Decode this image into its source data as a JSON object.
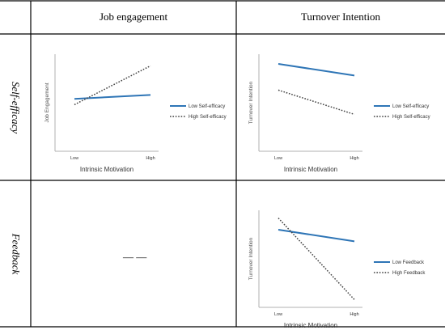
{
  "table": {
    "col_headers": [
      "Job engagement",
      "Turnover Intention"
    ],
    "row_headers": [
      "Self-efficacy",
      "Feedback"
    ],
    "empty_cell_text": "— —"
  },
  "colors": {
    "low_series": "#2e75b6",
    "high_series": "#404040",
    "grid_line": "#000000",
    "axis": "#b0b0b0"
  },
  "chart_data": [
    {
      "id": "selfefficacy_jobengagement",
      "type": "line",
      "x": [
        "Low",
        "High"
      ],
      "xlabel": "Intrinsic Motivation",
      "ylabel": "Job Engagement",
      "ylim": [
        0,
        10
      ],
      "legend_position": "right",
      "series": [
        {
          "name": "Low Self-efficacy",
          "values": [
            5.4,
            5.8
          ],
          "style": "solid"
        },
        {
          "name": "High Self-efficacy",
          "values": [
            4.8,
            8.8
          ],
          "style": "dotted"
        }
      ]
    },
    {
      "id": "selfefficacy_turnover",
      "type": "line",
      "x": [
        "Low",
        "High"
      ],
      "xlabel": "Intrinsic Motivation",
      "ylabel": "Turnover Intention",
      "ylim": [
        0,
        10
      ],
      "legend_position": "right",
      "series": [
        {
          "name": "Low Self-efficacy",
          "values": [
            9.0,
            7.8
          ],
          "style": "solid"
        },
        {
          "name": "High Self-efficacy",
          "values": [
            6.3,
            3.8
          ],
          "style": "dotted"
        }
      ]
    },
    {
      "id": "feedback_turnover",
      "type": "line",
      "x": [
        "Low",
        "High"
      ],
      "xlabel": "Intrinsic Motivation",
      "ylabel": "Turnover Intention",
      "ylim": [
        0,
        10
      ],
      "legend_position": "right",
      "series": [
        {
          "name": "Low Feedback",
          "values": [
            8.0,
            6.8
          ],
          "style": "solid"
        },
        {
          "name": "High Feedback",
          "values": [
            9.2,
            0.8
          ],
          "style": "dotted"
        }
      ]
    }
  ]
}
